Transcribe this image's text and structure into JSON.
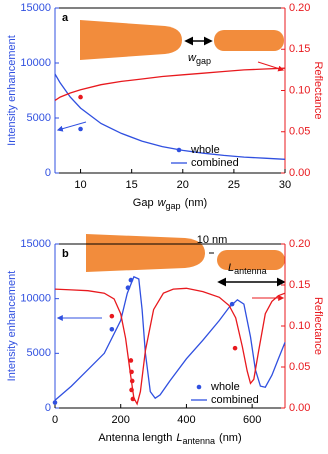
{
  "chart_data": [
    {
      "type": "line",
      "panel_label": "a",
      "xlabel_parts": [
        "Gap",
        "w",
        "gap",
        "(nm)"
      ],
      "ylabel": "Intensity enhancement",
      "y2label": "Reflectance",
      "annotation": {
        "var": "w",
        "sub": "gap"
      },
      "xlim": [
        7.5,
        30
      ],
      "xticks": [
        10,
        15,
        20,
        25,
        30
      ],
      "ylim": [
        0,
        15000
      ],
      "yticks": [
        0,
        5000,
        10000,
        15000
      ],
      "y2lim": [
        0,
        0.2
      ],
      "y2ticks": [
        {
          "value": 0,
          "label": "0.00"
        },
        0.05,
        {
          "value": 0.1,
          "label": "0.10"
        },
        0.15,
        {
          "value": 0.2,
          "label": "0.20"
        }
      ],
      "series": [
        {
          "name": "whole",
          "style": "scatter",
          "color": "#3050e0",
          "x": [
            10
          ],
          "values": [
            4000
          ]
        },
        {
          "name": "combined",
          "style": "line",
          "color": "#3050e0",
          "x": [
            7.5,
            8,
            9,
            10,
            12,
            14,
            16,
            18,
            20,
            22,
            24,
            26,
            28,
            30
          ],
          "values": [
            9000,
            8200,
            6900,
            5900,
            4500,
            3600,
            2900,
            2400,
            2050,
            1800,
            1600,
            1450,
            1350,
            1250
          ]
        },
        {
          "style": "scatter",
          "color": "#e8191e",
          "axis": "y2",
          "x": [
            10
          ],
          "values": [
            0.092
          ]
        },
        {
          "style": "line",
          "color": "#e8191e",
          "axis": "y2",
          "x": [
            7.5,
            8,
            9,
            10,
            12,
            14,
            16,
            18,
            20,
            22,
            24,
            26,
            28,
            30
          ],
          "values": [
            0.088,
            0.092,
            0.097,
            0.101,
            0.107,
            0.111,
            0.114,
            0.117,
            0.119,
            0.121,
            0.123,
            0.125,
            0.126,
            0.127
          ]
        }
      ]
    },
    {
      "type": "line",
      "panel_label": "b",
      "xlabel_parts": [
        "Antenna length",
        "L",
        "antenna",
        "(nm)"
      ],
      "ylabel": "Intensity enhancement",
      "y2label": "Reflectance",
      "annotation": {
        "gap": "10 nm",
        "var": "L",
        "sub": "antenna"
      },
      "xlim": [
        0,
        700
      ],
      "xticks": [
        0,
        200,
        400,
        600
      ],
      "ylim": [
        0,
        15000
      ],
      "yticks": [
        0,
        5000,
        10000,
        15000
      ],
      "y2lim": [
        0,
        0.2
      ],
      "y2ticks": [
        {
          "value": 0,
          "label": "0.00"
        },
        0.05,
        {
          "value": 0.1,
          "label": "0.10"
        },
        0.15,
        {
          "value": 0.2,
          "label": "0.20"
        }
      ],
      "series": [
        {
          "name": "whole",
          "style": "scatter",
          "color": "#3050e0",
          "x": [
            0,
            173,
            222,
            231,
            539
          ],
          "values": [
            500,
            7200,
            11000,
            11700,
            9500
          ]
        },
        {
          "name": "combined",
          "style": "line",
          "color": "#3050e0",
          "x": [
            0,
            50,
            100,
            150,
            200,
            220,
            240,
            255,
            265,
            275,
            290,
            305,
            320,
            350,
            400,
            450,
            500,
            530,
            555,
            575,
            595,
            610,
            625,
            640,
            660,
            680,
            700
          ],
          "values": [
            700,
            2000,
            3500,
            5000,
            8000,
            10500,
            12000,
            11800,
            9000,
            5000,
            1500,
            900,
            1200,
            2500,
            4500,
            6200,
            8000,
            9200,
            9900,
            9500,
            6500,
            3500,
            2000,
            1900,
            3000,
            4500,
            6000
          ]
        },
        {
          "style": "scatter",
          "color": "#e8191e",
          "axis": "y2",
          "x": [
            173,
            231,
            233,
            235,
            233,
            237,
            548
          ],
          "values": [
            0.112,
            0.058,
            0.044,
            0.033,
            0.022,
            0.011,
            0.073
          ]
        },
        {
          "style": "line",
          "color": "#e8191e",
          "axis": "y2",
          "x": [
            0,
            50,
            100,
            150,
            180,
            200,
            215,
            230,
            240,
            250,
            260,
            275,
            300,
            330,
            360,
            400,
            450,
            500,
            530,
            550,
            570,
            585,
            595,
            605,
            620,
            640,
            660,
            680,
            700
          ],
          "values": [
            0.145,
            0.144,
            0.143,
            0.14,
            0.133,
            0.115,
            0.085,
            0.04,
            0.012,
            0.005,
            0.02,
            0.07,
            0.12,
            0.14,
            0.145,
            0.146,
            0.142,
            0.135,
            0.125,
            0.11,
            0.075,
            0.045,
            0.03,
            0.035,
            0.07,
            0.115,
            0.13,
            0.137,
            0.14
          ]
        }
      ]
    }
  ]
}
